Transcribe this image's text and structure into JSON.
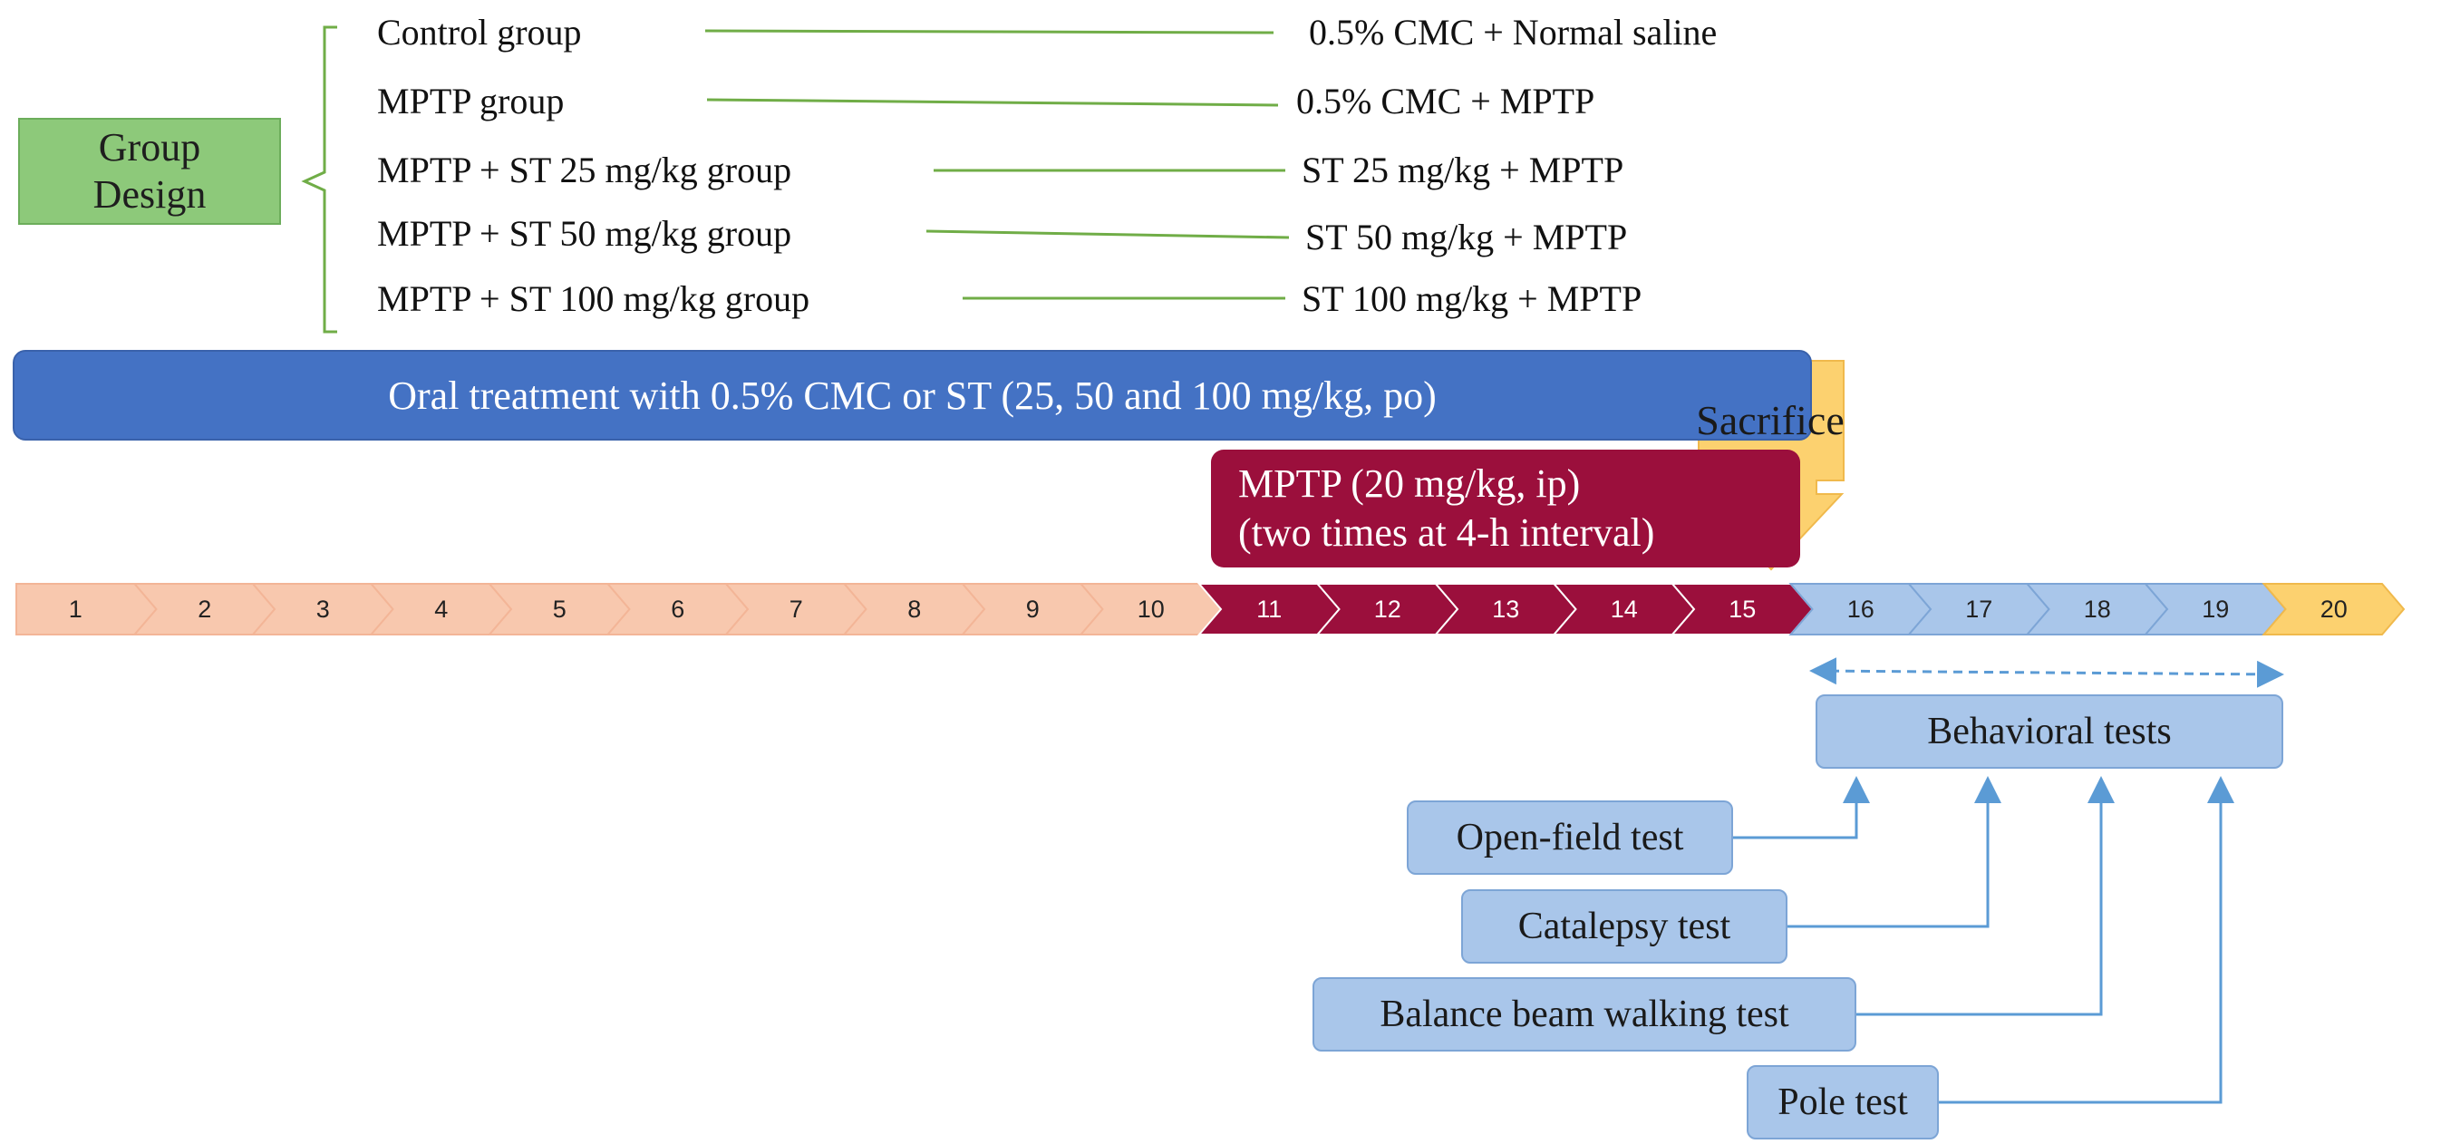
{
  "group_design": {
    "label_line1": "Group",
    "label_line2": "Design"
  },
  "groups": [
    {
      "name": "Control group",
      "treatment": "0.5% CMC + Normal saline"
    },
    {
      "name": "MPTP group",
      "treatment": "0.5% CMC + MPTP"
    },
    {
      "name": "MPTP + ST 25 mg/kg group",
      "treatment": "ST 25 mg/kg + MPTP"
    },
    {
      "name": "MPTP + ST 50 mg/kg group",
      "treatment": "ST 50 mg/kg + MPTP"
    },
    {
      "name": "MPTP + ST 100 mg/kg group",
      "treatment": "ST 100 mg/kg + MPTP"
    }
  ],
  "oral_treatment": "Oral treatment with 0.5% CMC or ST (25, 50 and 100 mg/kg, po)",
  "mptp": {
    "line1": "MPTP (20 mg/kg, ip)",
    "line2": "(two times at 4-h interval)"
  },
  "sacrifice": "Sacrifice",
  "timeline": {
    "days": [
      "1",
      "2",
      "3",
      "4",
      "5",
      "6",
      "7",
      "8",
      "9",
      "10",
      "11",
      "12",
      "13",
      "14",
      "15",
      "16",
      "17",
      "18",
      "19",
      "20"
    ],
    "phases": [
      {
        "name": "oral-only",
        "from_day": 1,
        "to_day": 10,
        "fill": "#f8c8ae",
        "stroke": "#f3b597",
        "text": "#222222"
      },
      {
        "name": "mptp",
        "from_day": 11,
        "to_day": 15,
        "fill": "#9b0f3c",
        "stroke": "#ffffff",
        "text": "#ffffff"
      },
      {
        "name": "behavioral",
        "from_day": 16,
        "to_day": 19,
        "fill": "#a9c6ea",
        "stroke": "#7da5d6",
        "text": "#222222"
      },
      {
        "name": "sacrifice",
        "from_day": 20,
        "to_day": 20,
        "fill": "#fcd16f",
        "stroke": "#f0b94c",
        "text": "#222222"
      }
    ]
  },
  "behavioral_tests": {
    "title": "Behavioral tests",
    "tests": [
      "Open-field test",
      "Catalepsy test",
      "Balance beam walking test",
      "Pole test"
    ]
  },
  "colors": {
    "group_box": "#8dc97a",
    "bracket": "#70ad47",
    "connector": "#70ad47",
    "oral_bar": "#4472c4",
    "mptp_box": "#9b0f3c",
    "behavioral": "#a9c6ea",
    "sacrifice": "#fcd16f",
    "arrow": "#5b9bd5"
  }
}
